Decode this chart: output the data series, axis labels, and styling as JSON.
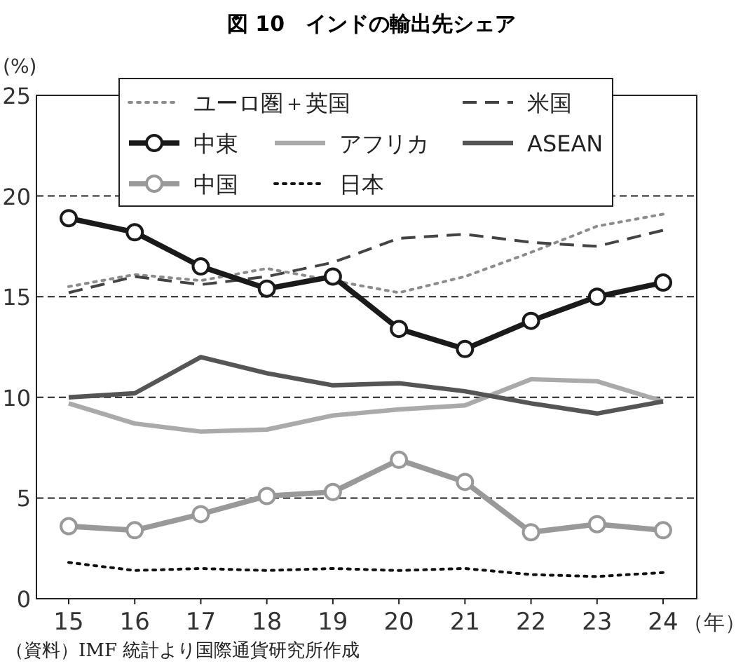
{
  "chart_data": {
    "type": "line",
    "title": "図 10　インドの輸出先シェア",
    "xlabel": "（年）",
    "ylabel": "(%)",
    "categories": [
      "15",
      "16",
      "17",
      "18",
      "19",
      "20",
      "21",
      "22",
      "23",
      "24"
    ],
    "ylim": [
      0,
      25
    ],
    "yticks": [
      0,
      5,
      10,
      15,
      20,
      25
    ],
    "grid": "y",
    "legend": "top",
    "series": [
      {
        "name": "ユーロ圏＋英国",
        "color": "#8c8c8c",
        "line_style": "dotted",
        "marker": "none",
        "values": [
          15.5,
          16.1,
          15.8,
          16.4,
          15.8,
          15.2,
          16.0,
          17.2,
          18.5,
          19.1
        ]
      },
      {
        "name": "米国",
        "color": "#444444",
        "line_style": "dashed",
        "marker": "none",
        "values": [
          15.2,
          16.0,
          15.6,
          16.0,
          16.7,
          17.9,
          18.1,
          17.7,
          17.5,
          18.3
        ]
      },
      {
        "name": "中東",
        "color": "#1a1a1a",
        "line_style": "solid",
        "marker": "circle",
        "values": [
          18.9,
          18.2,
          16.5,
          15.4,
          16.0,
          13.4,
          12.4,
          13.8,
          15.0,
          15.7
        ]
      },
      {
        "name": "アフリカ",
        "color": "#aaaaaa",
        "line_style": "solid",
        "marker": "none",
        "values": [
          9.7,
          8.7,
          8.3,
          8.4,
          9.1,
          9.4,
          9.6,
          10.9,
          10.8,
          9.8
        ]
      },
      {
        "name": "ASEAN",
        "color": "#555555",
        "line_style": "solid",
        "marker": "none",
        "values": [
          10.0,
          10.2,
          12.0,
          11.2,
          10.6,
          10.7,
          10.3,
          9.7,
          9.2,
          9.8
        ]
      },
      {
        "name": "中国",
        "color": "#999999",
        "line_style": "solid",
        "marker": "circle",
        "values": [
          3.6,
          3.4,
          4.2,
          5.1,
          5.3,
          6.9,
          5.8,
          3.3,
          3.7,
          3.4
        ]
      },
      {
        "name": "日本",
        "color": "#111111",
        "line_style": "dotted",
        "marker": "none",
        "values": [
          1.8,
          1.4,
          1.5,
          1.4,
          1.5,
          1.4,
          1.5,
          1.2,
          1.1,
          1.3
        ]
      }
    ],
    "annotations": [
      "（資料）IMF 統計より国際通貨研究所作成"
    ]
  }
}
